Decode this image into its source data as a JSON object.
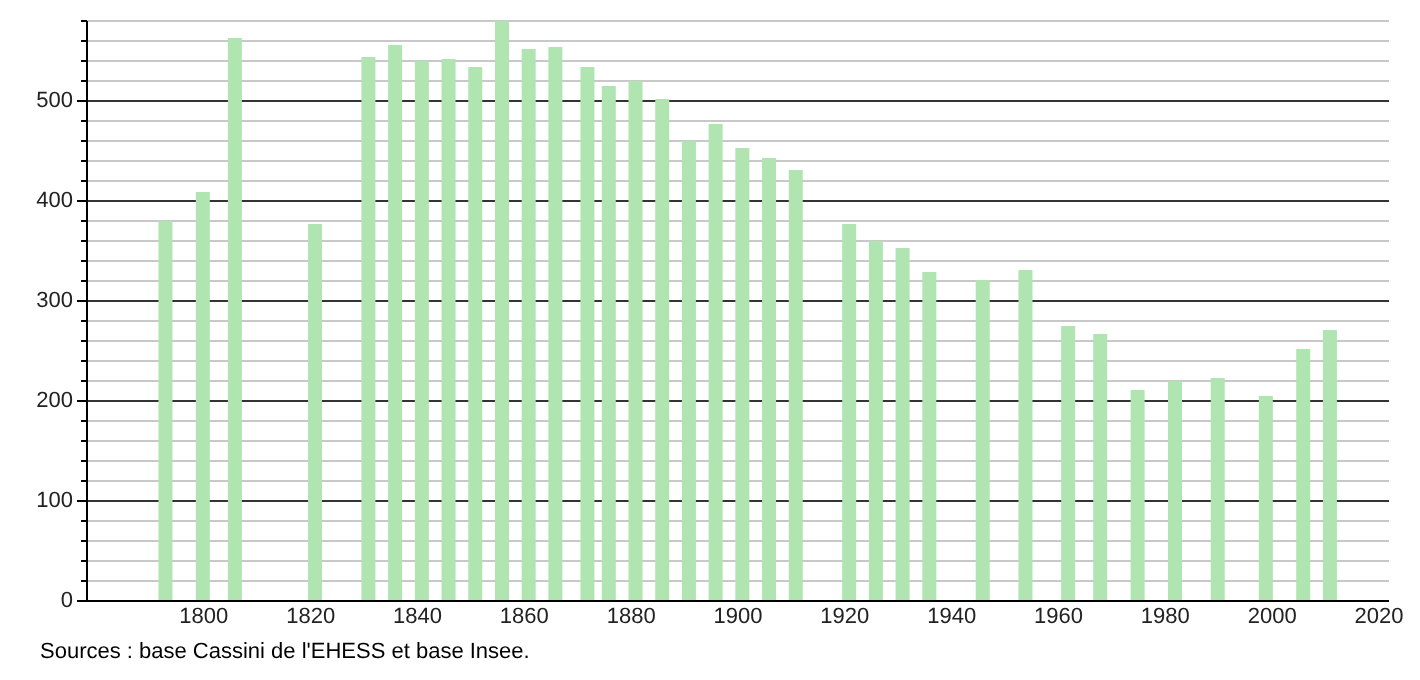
{
  "chart_data": {
    "type": "bar",
    "x": [
      1793,
      1800,
      1806,
      1821,
      1831,
      1836,
      1841,
      1846,
      1851,
      1856,
      1861,
      1866,
      1872,
      1876,
      1881,
      1886,
      1891,
      1896,
      1901,
      1906,
      1911,
      1921,
      1926,
      1931,
      1936,
      1946,
      1954,
      1962,
      1968,
      1975,
      1982,
      1990,
      1999,
      2006,
      2011
    ],
    "values": [
      379,
      408,
      562,
      376,
      543,
      555,
      539,
      541,
      533,
      579,
      551,
      553,
      533,
      514,
      519,
      501,
      459,
      476,
      452,
      442,
      430,
      376,
      359,
      352,
      328,
      320,
      330,
      274,
      266,
      210,
      219,
      222,
      204,
      251,
      270
    ],
    "color": "#b0e4b0",
    "xlim": [
      1780,
      2020
    ],
    "xticks": [
      1800,
      1820,
      1840,
      1860,
      1880,
      1900,
      1920,
      1940,
      1960,
      1980,
      2000,
      2020
    ],
    "ylim": [
      0,
      580
    ],
    "yticks": [
      0,
      {
        "value": 20,
        "label": null
      },
      {
        "value": 40,
        "label": null
      },
      {
        "value": 60,
        "label": null
      },
      {
        "value": 80,
        "label": null
      },
      100,
      {
        "value": 120,
        "label": null
      },
      {
        "value": 140,
        "label": null
      },
      {
        "value": 160,
        "label": null
      },
      {
        "value": 180,
        "label": null
      },
      200,
      {
        "value": 220,
        "label": null
      },
      {
        "value": 240,
        "label": null
      },
      {
        "value": 260,
        "label": null
      },
      {
        "value": 280,
        "label": null
      },
      300,
      {
        "value": 320,
        "label": null
      },
      {
        "value": 340,
        "label": null
      },
      {
        "value": 360,
        "label": null
      },
      {
        "value": 380,
        "label": null
      },
      400,
      {
        "value": 420,
        "label": null
      },
      {
        "value": 440,
        "label": null
      },
      {
        "value": 460,
        "label": null
      },
      {
        "value": 480,
        "label": null
      },
      500,
      {
        "value": 520,
        "label": null
      },
      {
        "value": 540,
        "label": null
      },
      {
        "value": 560,
        "label": null
      },
      {
        "value": 580,
        "label": null
      }
    ],
    "grid": "y",
    "annotations": [
      "Sources : base Cassini de l'EHESS et base Insee."
    ]
  }
}
